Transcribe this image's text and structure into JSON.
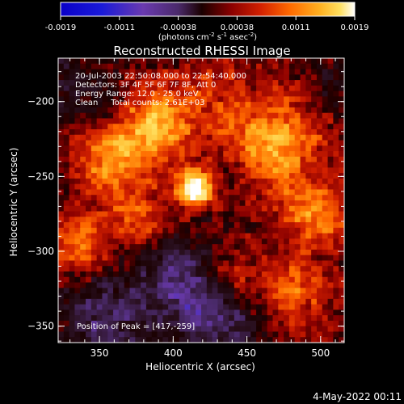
{
  "colorbar": {
    "ticks": [
      "-0.0019",
      "-0.0011",
      "-0.00038",
      "0.00038",
      "0.0011",
      "0.0019"
    ],
    "unit_parts": [
      "(photons cm",
      "-2",
      " s",
      "-1",
      " asec",
      "-2",
      ")"
    ]
  },
  "title": "Reconstructed RHESSI Image",
  "info_lines": [
    "20-Jul-2003 22:50:08.000 to 22:54:40.000",
    "Detectors: 3F 4F 5F 6F 7F 8F, Att 0",
    "Energy Range: 12.0 - 25.0 keV",
    "Clean     Total counts: 2.61E+03"
  ],
  "peak_label": "Position of Peak = [417,-259]",
  "axes": {
    "xlabel": "Heliocentric X (arcsec)",
    "ylabel": "Heliocentric Y (arcsec)",
    "xticks": [
      "350",
      "400",
      "450",
      "500"
    ],
    "yticks": [
      "-200",
      "-250",
      "-300",
      "-350"
    ],
    "xlim": [
      322,
      516
    ],
    "ylim": [
      -361,
      -171
    ]
  },
  "timestamp": "4-May-2022 00:11",
  "colors": {
    "background": "#000000",
    "text": "#ffffff",
    "colormap": [
      "#0a00c8",
      "#1a1ad8",
      "#6a3ab0",
      "#4a2a6a",
      "#2a1020",
      "#1a0000",
      "#8a0000",
      "#d22000",
      "#ff6a00",
      "#ffb020",
      "#ffe060",
      "#ffffff"
    ]
  }
}
